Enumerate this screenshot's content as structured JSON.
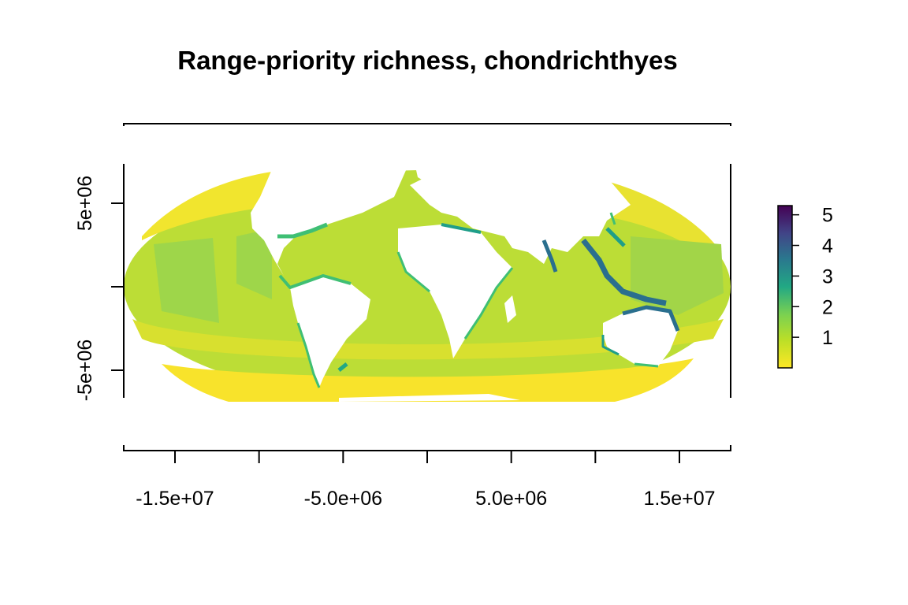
{
  "title": "Range-priority richness, chondrichthyes",
  "x_axis": {
    "ticks": [
      -15000000.0,
      -10000000.0,
      -5000000.0,
      0,
      5000000.0,
      10000000.0,
      15000000.0
    ],
    "labels": [
      "-1.5e+07",
      "",
      "-5.0e+06",
      "",
      "5.0e+06",
      "",
      "1.5e+07"
    ]
  },
  "y_axis": {
    "ticks": [
      5000000.0,
      0,
      -5000000.0
    ],
    "labels": [
      "5e+06",
      "",
      "-5e+06"
    ]
  },
  "legend": {
    "labels": [
      "1",
      "2",
      "3",
      "4",
      "5"
    ],
    "range": [
      0,
      5.3
    ],
    "colors": [
      "#FDE725",
      "#BCDF27",
      "#7AD151",
      "#22A884",
      "#2A788E",
      "#414487",
      "#440154"
    ]
  },
  "colors": {
    "land": "#ffffff",
    "ocean_low": "#F6E62A",
    "ocean_mid": "#BCDD36",
    "ocean_midgreen": "#9ED64A",
    "coast_green": "#3FBF74",
    "coast_teal": "#1F9E89",
    "coast_blue": "#2A6F8E"
  }
}
